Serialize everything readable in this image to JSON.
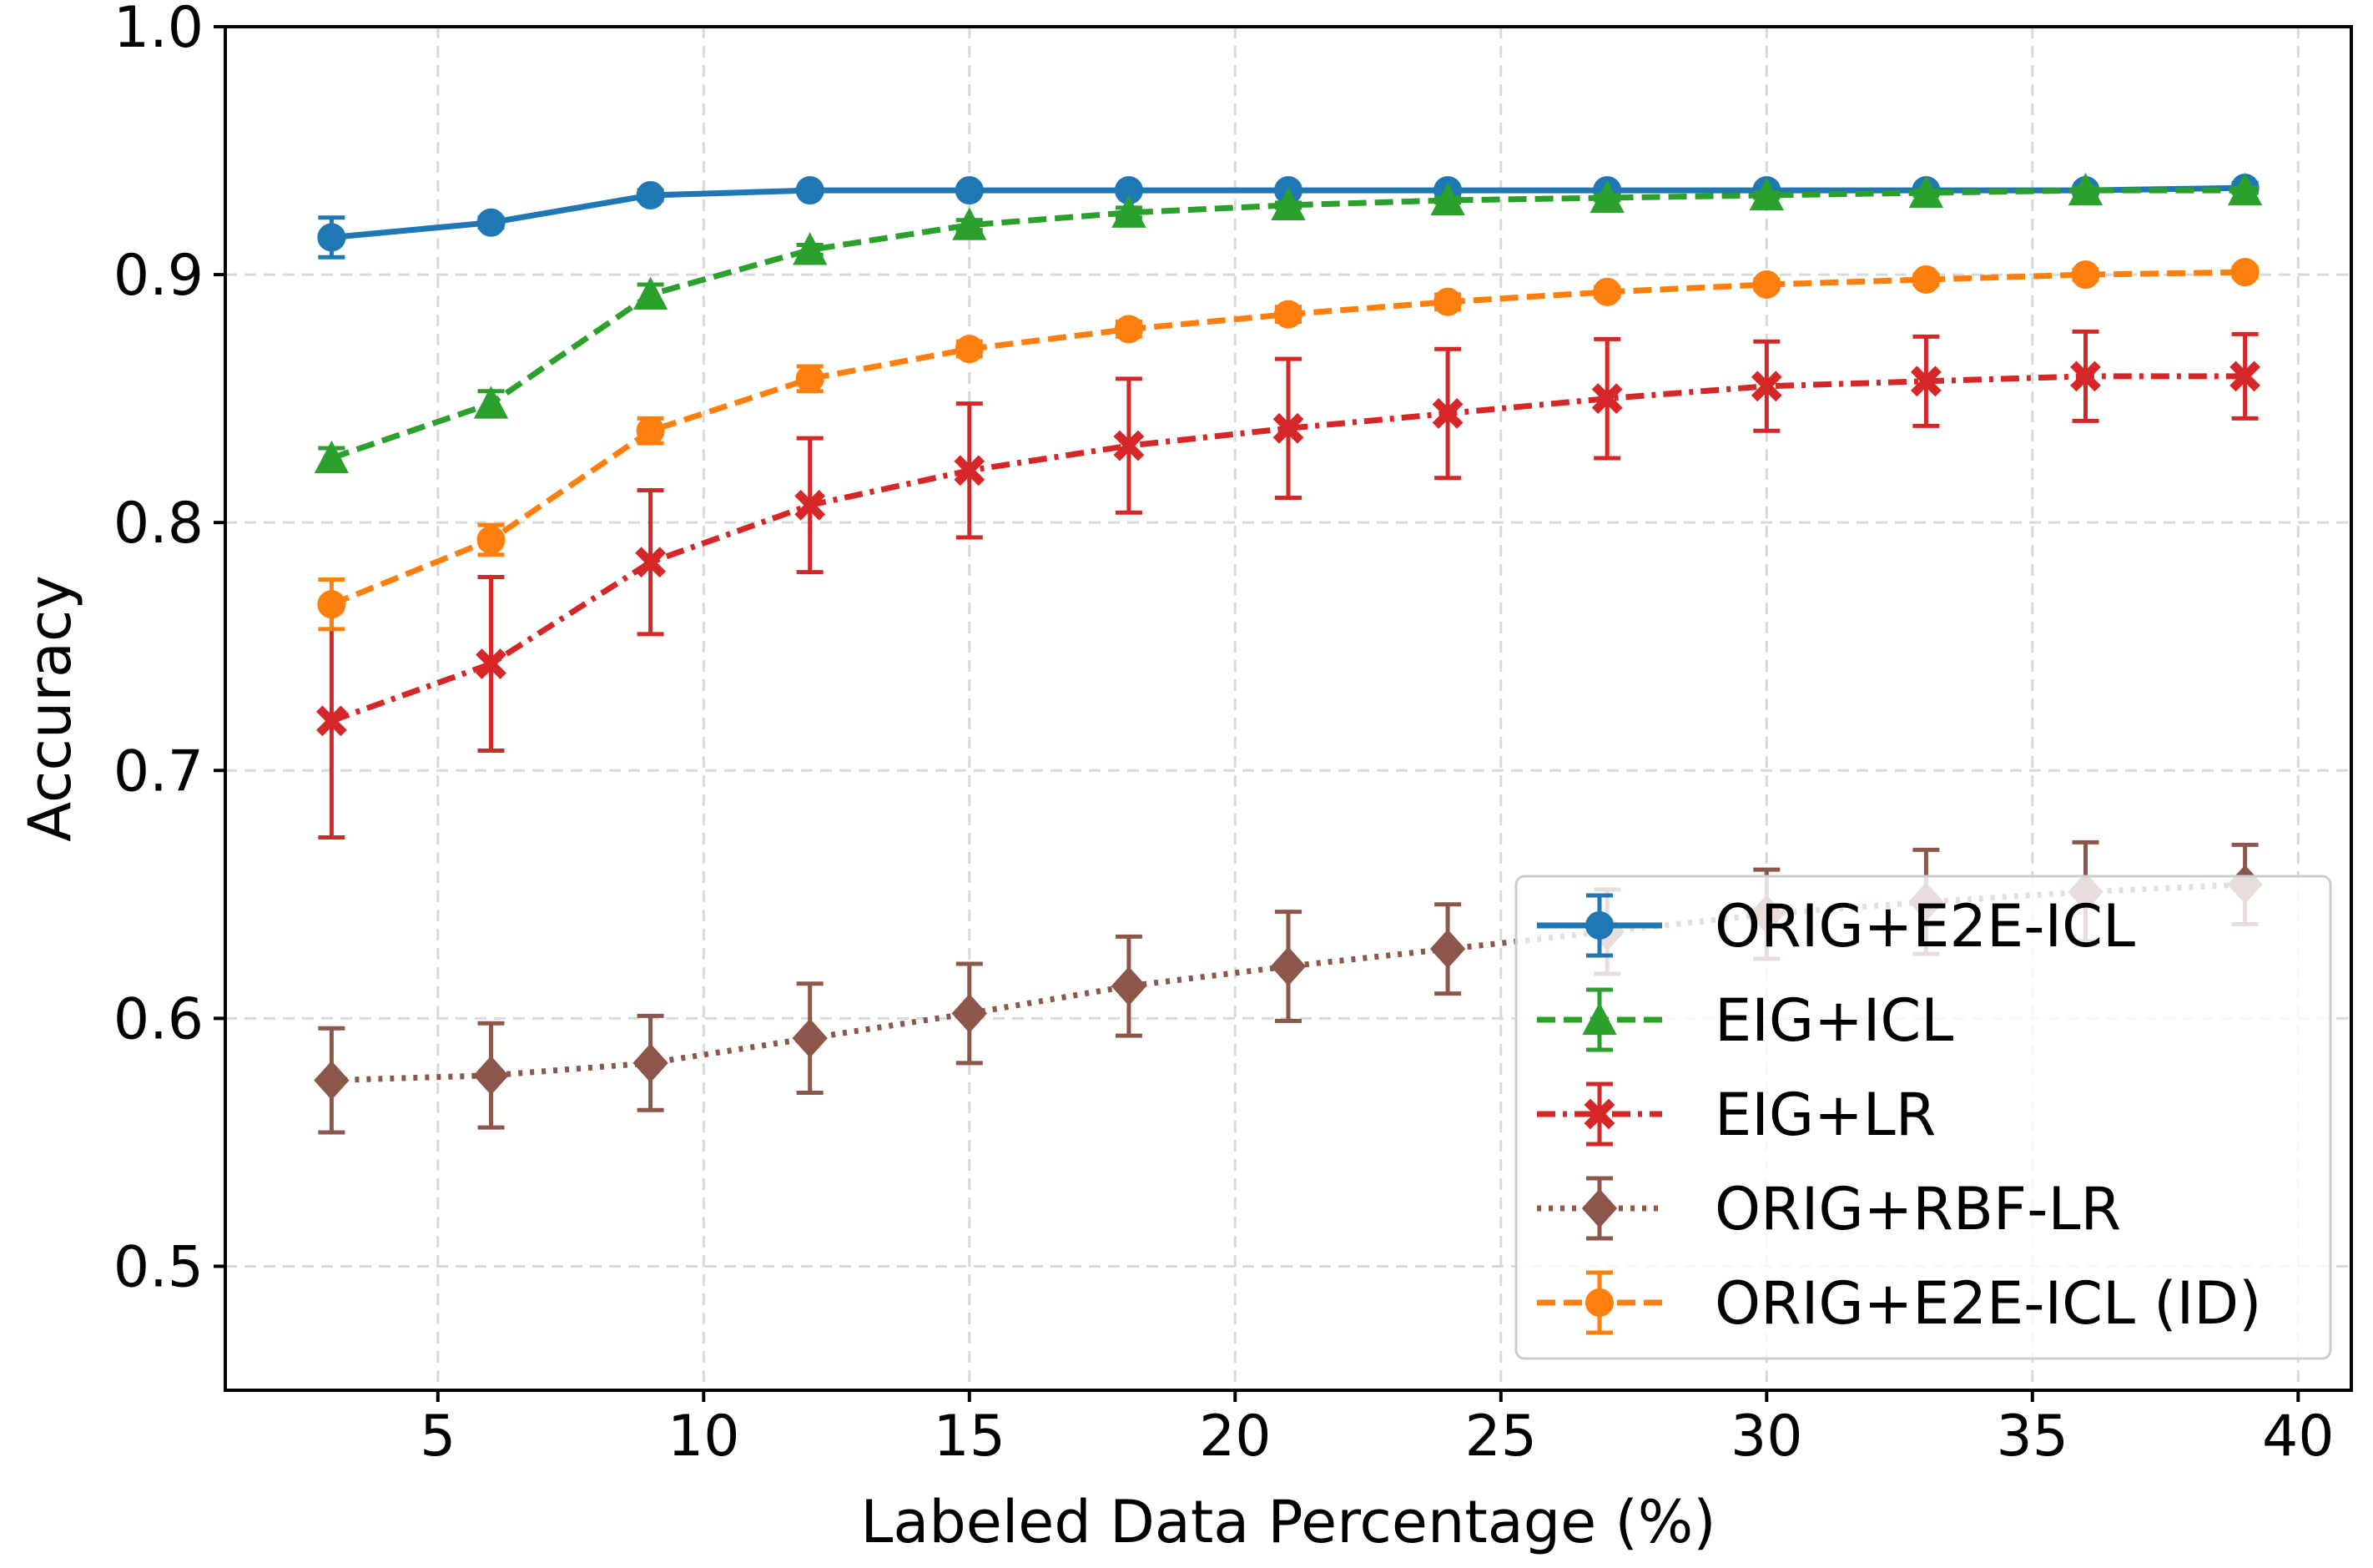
{
  "chart_data": {
    "type": "line",
    "title": "",
    "xlabel": "Labeled Data Percentage (%)",
    "ylabel": "Accuracy",
    "xlim": [
      1,
      41
    ],
    "ylim": [
      0.45,
      1.0
    ],
    "xticks": [
      5,
      10,
      15,
      20,
      25,
      30,
      35,
      40
    ],
    "yticks": [
      0.5,
      0.6,
      0.7,
      0.8,
      0.9,
      1.0
    ],
    "xtick_labels": [
      "5",
      "10",
      "15",
      "20",
      "25",
      "30",
      "35",
      "40"
    ],
    "ytick_labels": [
      "0.5",
      "0.6",
      "0.7",
      "0.8",
      "0.9",
      "1.0"
    ],
    "grid": true,
    "legend_position": "lower-right",
    "x": [
      3,
      6,
      9,
      12,
      15,
      18,
      21,
      24,
      27,
      30,
      33,
      36,
      39
    ],
    "series": [
      {
        "name": "ORIG+E2E-ICL",
        "color": "#1f77b4",
        "linestyle": "solid",
        "marker": "circle",
        "values": [
          0.915,
          0.921,
          0.932,
          0.934,
          0.934,
          0.934,
          0.934,
          0.934,
          0.934,
          0.934,
          0.934,
          0.934,
          0.935
        ],
        "errors": [
          0.008,
          0.002,
          0.002,
          0.001,
          0.001,
          0.001,
          0.001,
          0.001,
          0.001,
          0.001,
          0.001,
          0.001,
          0.002
        ]
      },
      {
        "name": "EIG+ICL",
        "color": "#2ca02c",
        "linestyle": "dashed",
        "marker": "triangle",
        "values": [
          0.826,
          0.848,
          0.892,
          0.91,
          0.92,
          0.925,
          0.928,
          0.93,
          0.931,
          0.932,
          0.933,
          0.934,
          0.934
        ],
        "errors": [
          0.004,
          0.005,
          0.004,
          0.002,
          0.002,
          0.002,
          0.001,
          0.001,
          0.001,
          0.001,
          0.001,
          0.001,
          0.001
        ]
      },
      {
        "name": "EIG+LR",
        "color": "#d62728",
        "linestyle": "dashdot",
        "marker": "x",
        "values": [
          0.72,
          0.743,
          0.784,
          0.807,
          0.821,
          0.831,
          0.838,
          0.844,
          0.85,
          0.855,
          0.857,
          0.859,
          0.859
        ],
        "errors": [
          0.047,
          0.035,
          0.029,
          0.027,
          0.027,
          0.027,
          0.028,
          0.026,
          0.024,
          0.018,
          0.018,
          0.018,
          0.017
        ]
      },
      {
        "name": "ORIG+RBF-LR",
        "color": "#8c564b",
        "linestyle": "dotted",
        "marker": "diamond",
        "values": [
          0.575,
          0.577,
          0.582,
          0.592,
          0.602,
          0.613,
          0.621,
          0.628,
          0.635,
          0.642,
          0.647,
          0.651,
          0.654
        ],
        "errors": [
          0.021,
          0.021,
          0.019,
          0.022,
          0.02,
          0.02,
          0.022,
          0.018,
          0.017,
          0.018,
          0.021,
          0.02,
          0.016
        ]
      },
      {
        "name": "ORIG+E2E-ICL (ID)",
        "color": "#ff7f0e",
        "linestyle": "dashed",
        "marker": "circle",
        "values": [
          0.767,
          0.793,
          0.837,
          0.858,
          0.87,
          0.878,
          0.884,
          0.889,
          0.893,
          0.896,
          0.898,
          0.9,
          0.901
        ],
        "errors": [
          0.01,
          0.006,
          0.005,
          0.005,
          0.003,
          0.003,
          0.003,
          0.003,
          0.002,
          0.002,
          0.002,
          0.002,
          0.002
        ]
      }
    ]
  }
}
